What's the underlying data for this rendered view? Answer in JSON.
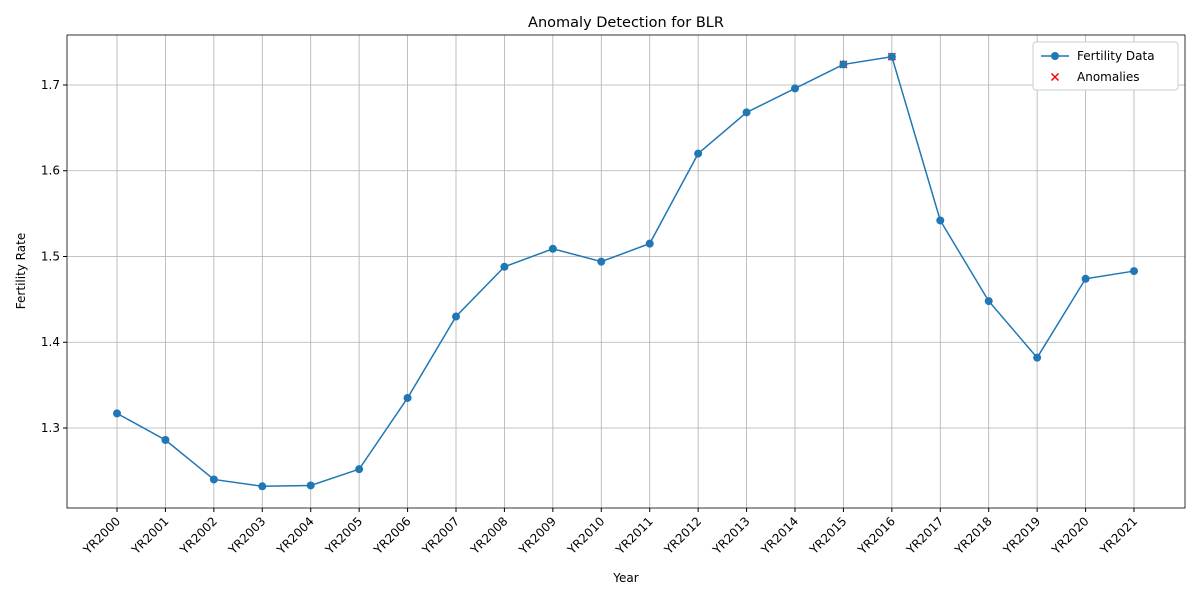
{
  "chart_data": {
    "type": "line",
    "title": "Anomaly Detection for BLR",
    "x_label": "Year",
    "y_label": "Fertility Rate",
    "categories": [
      "YR2000",
      "YR2001",
      "YR2002",
      "YR2003",
      "YR2004",
      "YR2005",
      "YR2006",
      "YR2007",
      "YR2008",
      "YR2009",
      "YR2010",
      "YR2011",
      "YR2012",
      "YR2013",
      "YR2014",
      "YR2015",
      "YR2016",
      "YR2017",
      "YR2018",
      "YR2019",
      "YR2020",
      "YR2021"
    ],
    "series": [
      {
        "name": "Fertility Data",
        "color": "#1f77b4",
        "values": [
          1.317,
          1.286,
          1.24,
          1.232,
          1.233,
          1.252,
          1.335,
          1.43,
          1.488,
          1.509,
          1.494,
          1.515,
          1.62,
          1.668,
          1.696,
          1.724,
          1.733,
          1.542,
          1.448,
          1.382,
          1.474,
          1.483
        ]
      },
      {
        "name": "Anomalies",
        "type": "scatter",
        "color": "#ff0000",
        "values": [
          null,
          null,
          null,
          null,
          null,
          null,
          null,
          null,
          null,
          null,
          null,
          null,
          null,
          null,
          null,
          1.724,
          1.733,
          null,
          null,
          null,
          null,
          null
        ]
      }
    ],
    "ylim": [
      1.2067,
      1.7583
    ],
    "yticks": [
      1.3,
      1.4,
      1.5,
      1.6,
      1.7
    ],
    "grid": true,
    "legend": "upper right"
  }
}
